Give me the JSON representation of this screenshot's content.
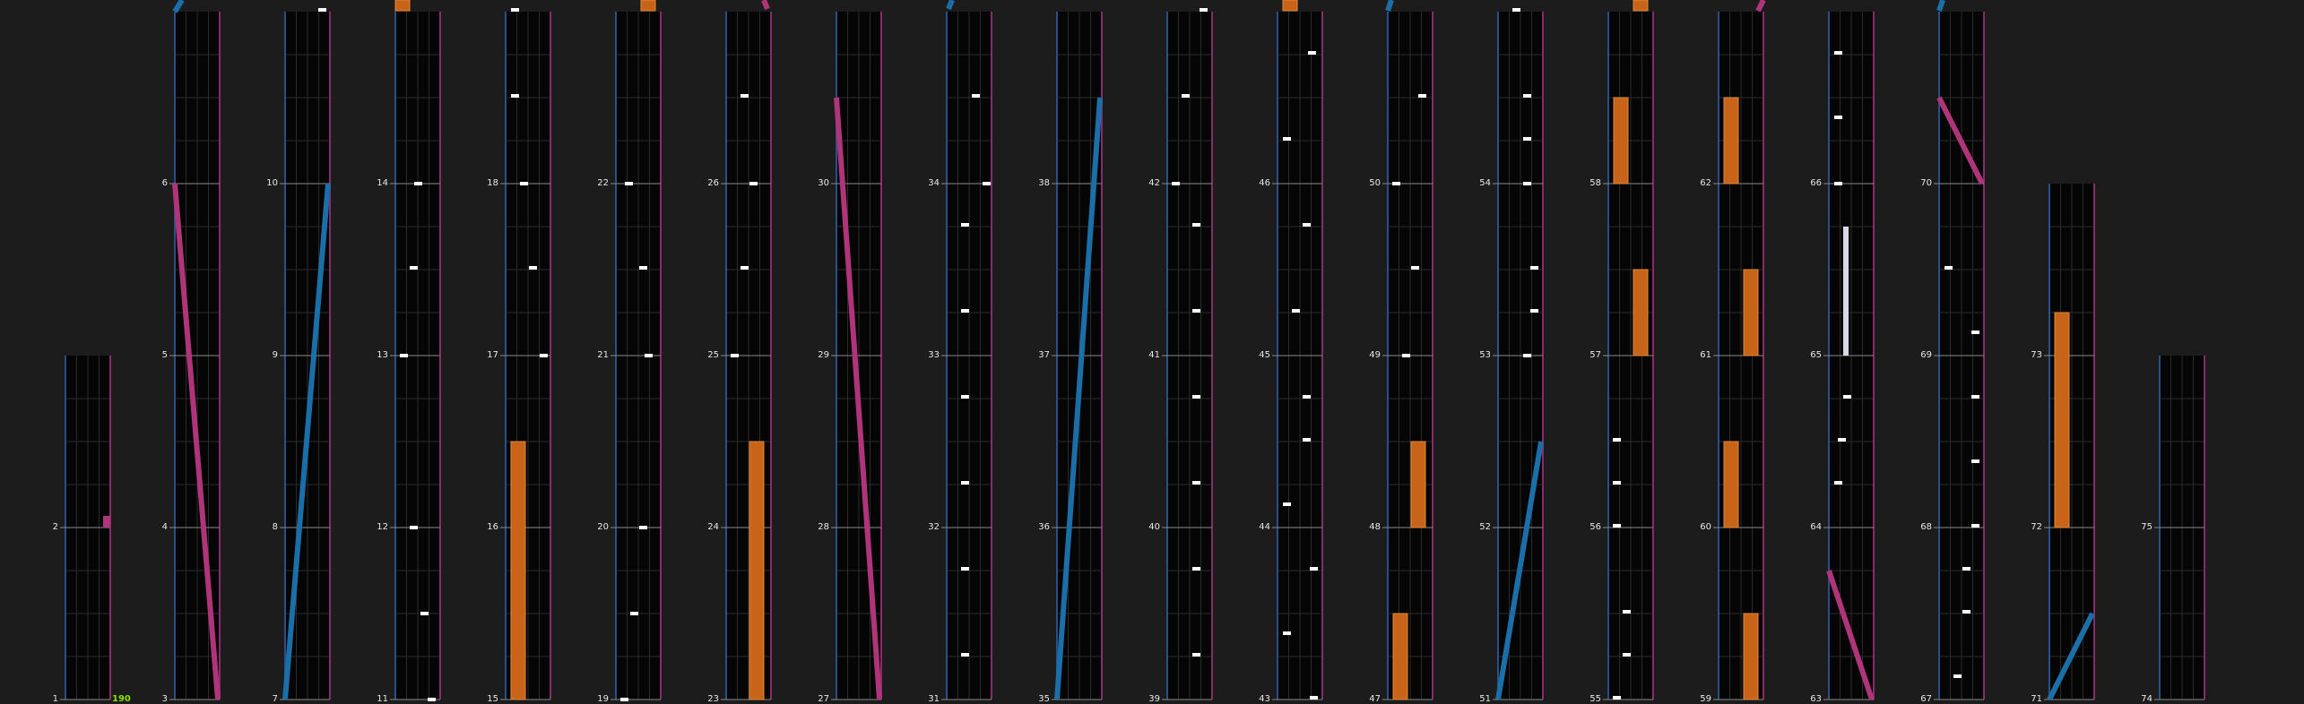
{
  "theme": {
    "background": "#1c1c1c",
    "lane_bg": "#050505",
    "grid": "#2b2b2b",
    "measure_line": "#8a8a8a",
    "left_border": "#2a4f86",
    "right_border": "#8a2a6a",
    "tap_color": "#ffffff",
    "hold_color": "#c8641a",
    "blue_slide": "#1a6fa8",
    "pink_slide": "#b0347a",
    "combo_color": "#88e000"
  },
  "chart_data": {
    "type": "rhythm-chart",
    "title": "",
    "measure_labels": [
      "1",
      "2",
      "3",
      "4",
      "5",
      "6",
      "7",
      "8",
      "9",
      "10",
      "11",
      "12",
      "13",
      "14",
      "15",
      "16",
      "17",
      "18",
      "19",
      "20",
      "21",
      "22",
      "23",
      "24",
      "25",
      "26",
      "27",
      "28",
      "29",
      "30",
      "31",
      "32",
      "33",
      "34",
      "35",
      "36",
      "37",
      "38",
      "39",
      "40",
      "41",
      "42",
      "43",
      "44",
      "45",
      "46",
      "47",
      "48",
      "49",
      "50",
      "51",
      "52",
      "53",
      "54",
      "55",
      "56",
      "57",
      "58",
      "59",
      "60",
      "61",
      "62",
      "63",
      "64",
      "65",
      "66",
      "67",
      "68",
      "69",
      "70",
      "71",
      "72",
      "73",
      "74",
      "75"
    ],
    "combo": "190",
    "note_types": [
      "tap",
      "hold",
      "slide-blue",
      "slide-pink",
      "long-white"
    ]
  }
}
